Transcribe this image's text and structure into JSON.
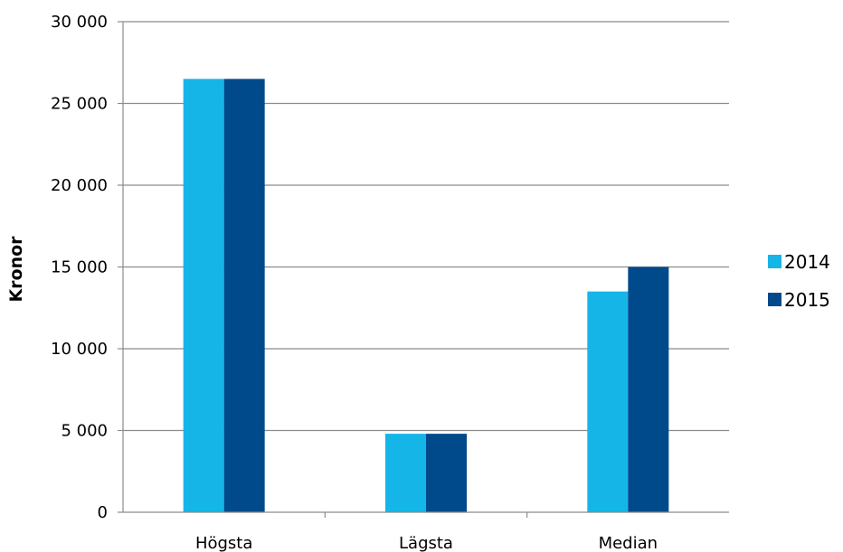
{
  "chart_data": {
    "type": "bar",
    "categories": [
      "Högsta",
      "Lägsta",
      "Median"
    ],
    "series": [
      {
        "name": "2014",
        "values": [
          26500,
          4800,
          13500
        ],
        "color": "#15b5e8"
      },
      {
        "name": "2015",
        "values": [
          26500,
          4800,
          15000
        ],
        "color": "#004a8c"
      }
    ],
    "ylabel": "Kronor",
    "xlabel": "",
    "ylim": [
      0,
      30000
    ],
    "yticks": [
      0,
      5000,
      10000,
      15000,
      20000,
      25000,
      30000
    ],
    "ytick_labels": [
      "0",
      "5 000",
      "10 000",
      "15 000",
      "20 000",
      "25 000",
      "30 000"
    ],
    "grid": true,
    "legend": "right"
  }
}
